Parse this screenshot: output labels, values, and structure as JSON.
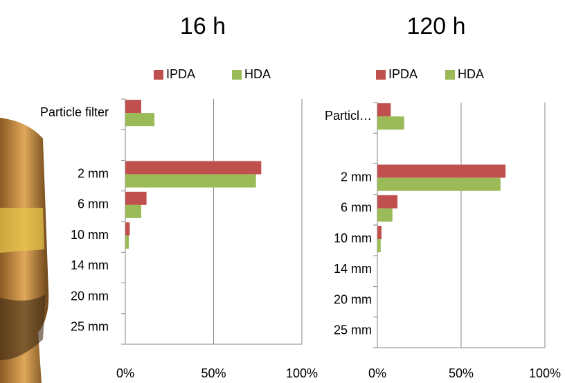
{
  "chart_data": [
    {
      "type": "bar",
      "orientation": "horizontal",
      "title": "16 h",
      "categories": [
        "Particle filter",
        null,
        "2 mm",
        "6 mm",
        "10 mm",
        "14 mm",
        "20 mm",
        "25 mm"
      ],
      "series": [
        {
          "name": "IPDA",
          "color": "#c0504d",
          "values": [
            9,
            0,
            77,
            12,
            2.5,
            0,
            0,
            0
          ]
        },
        {
          "name": "HDA",
          "color": "#9bbb59",
          "values": [
            16.5,
            0,
            74,
            9,
            2,
            0,
            0,
            0
          ]
        }
      ],
      "xlim": [
        0,
        100
      ],
      "xticks": [
        {
          "value": 0,
          "label": "0%"
        },
        {
          "value": 50,
          "label": "50%"
        },
        {
          "value": 100,
          "label": "100%"
        }
      ],
      "grid": true,
      "legend": "top"
    },
    {
      "type": "bar",
      "orientation": "horizontal",
      "title": "120 h",
      "categories": [
        "Particl…",
        null,
        "2 mm",
        "6 mm",
        "10 mm",
        "14 mm",
        "20 mm",
        "25 mm"
      ],
      "series": [
        {
          "name": "IPDA",
          "color": "#c0504d",
          "values": [
            8,
            0,
            76.5,
            12,
            2.5,
            0,
            0,
            0
          ]
        },
        {
          "name": "HDA",
          "color": "#9bbb59",
          "values": [
            16,
            0,
            73.5,
            9,
            2,
            0,
            0,
            0
          ]
        }
      ],
      "xlim": [
        0,
        100
      ],
      "xticks": [
        {
          "value": 0,
          "label": "0%"
        },
        {
          "value": 50,
          "label": "50%"
        },
        {
          "value": 100,
          "label": "100%"
        }
      ],
      "grid": true,
      "legend": "top"
    }
  ]
}
